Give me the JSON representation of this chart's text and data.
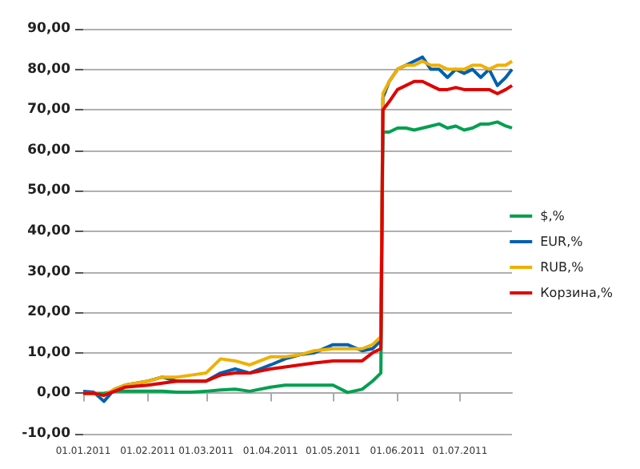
{
  "chart_data": {
    "type": "line",
    "x": [
      "2011-01-01",
      "2011-01-06",
      "2011-01-11",
      "2011-01-16",
      "2011-01-21",
      "2011-02-01",
      "2011-02-08",
      "2011-02-15",
      "2011-02-22",
      "2011-03-01",
      "2011-03-08",
      "2011-03-15",
      "2011-03-22",
      "2011-04-01",
      "2011-04-08",
      "2011-04-15",
      "2011-04-22",
      "2011-05-01",
      "2011-05-08",
      "2011-05-15",
      "2011-05-20",
      "2011-05-24",
      "2011-05-25",
      "2011-05-28",
      "2011-06-01",
      "2011-06-05",
      "2011-06-09",
      "2011-06-13",
      "2011-06-17",
      "2011-06-21",
      "2011-06-25",
      "2011-06-29",
      "2011-07-03",
      "2011-07-07",
      "2011-07-11",
      "2011-07-15",
      "2011-07-19",
      "2011-07-23",
      "2011-07-26"
    ],
    "series": [
      {
        "name": "$,%",
        "color": "#00a050",
        "values": [
          0,
          0,
          0,
          0.5,
          0.5,
          0.5,
          0.5,
          0.3,
          0.3,
          0.5,
          0.8,
          1,
          0.5,
          1.5,
          2,
          2,
          2,
          2,
          0.2,
          1,
          3,
          5,
          64.5,
          64.5,
          65.5,
          65.5,
          65,
          65.5,
          66,
          66.5,
          65.5,
          66,
          65,
          65.5,
          66.5,
          66.5,
          67,
          66,
          65.5
        ]
      },
      {
        "name": "EUR,%",
        "color": "#0060b0",
        "values": [
          0.5,
          0.3,
          -2,
          1,
          2,
          3,
          4,
          3,
          3,
          3,
          5,
          6,
          5,
          7,
          8.5,
          9.5,
          10,
          12,
          12,
          10.5,
          11,
          13,
          73,
          77,
          80,
          81,
          82,
          83,
          80,
          80,
          78,
          80,
          79,
          80,
          78,
          80,
          76,
          78,
          80
        ]
      },
      {
        "name": "RUB,%",
        "color": "#f0b000",
        "values": [
          0,
          0,
          -0.5,
          1,
          2,
          3,
          4,
          4,
          4.5,
          5,
          8.5,
          8,
          7,
          9,
          9,
          9.5,
          10.5,
          11,
          11,
          11,
          12,
          14,
          74,
          77,
          80,
          81,
          81,
          82,
          81,
          81,
          80,
          80,
          80,
          81,
          81,
          80,
          81,
          81,
          82
        ]
      },
      {
        "name": "Корзина,%",
        "color": "#e00000",
        "values": [
          0,
          0,
          -0.5,
          0.5,
          1.5,
          2,
          2.5,
          3,
          3,
          3,
          4.5,
          5,
          5,
          6,
          6.5,
          7,
          7.5,
          8,
          8,
          8,
          10,
          11,
          70,
          72,
          75,
          76,
          77,
          77,
          76,
          75,
          75,
          75.5,
          75,
          75,
          75,
          75,
          74,
          75,
          76
        ]
      }
    ],
    "xlim": [
      "2011-01-01",
      "2011-07-26"
    ],
    "xticks": [
      {
        "value": "2011-01-01",
        "label": "01.01.2011"
      },
      {
        "value": "2011-02-01",
        "label": "01.02.2011"
      },
      {
        "value": "2011-03-01",
        "label": "01.03.2011"
      },
      {
        "value": "2011-04-01",
        "label": "01.04.2011"
      },
      {
        "value": "2011-05-01",
        "label": "01.05.2011"
      },
      {
        "value": "2011-06-01",
        "label": "01.06.2011"
      },
      {
        "value": "2011-07-01",
        "label": "01.07.2011"
      }
    ],
    "ylim": [
      -10,
      90
    ],
    "yticks": [
      {
        "value": -10,
        "label": "-10,00"
      },
      {
        "value": 0,
        "label": "0,00"
      },
      {
        "value": 10,
        "label": "10,00"
      },
      {
        "value": 20,
        "label": "20,00"
      },
      {
        "value": 30,
        "label": "30,00"
      },
      {
        "value": 40,
        "label": "40,00"
      },
      {
        "value": 50,
        "label": "50,00"
      },
      {
        "value": 60,
        "label": "60,00"
      },
      {
        "value": 70,
        "label": "70,00"
      },
      {
        "value": 80,
        "label": "80,00"
      },
      {
        "value": 90,
        "label": "90,00"
      }
    ],
    "grid": "y",
    "legend": "right",
    "marker": "none",
    "line_style": "solid"
  }
}
